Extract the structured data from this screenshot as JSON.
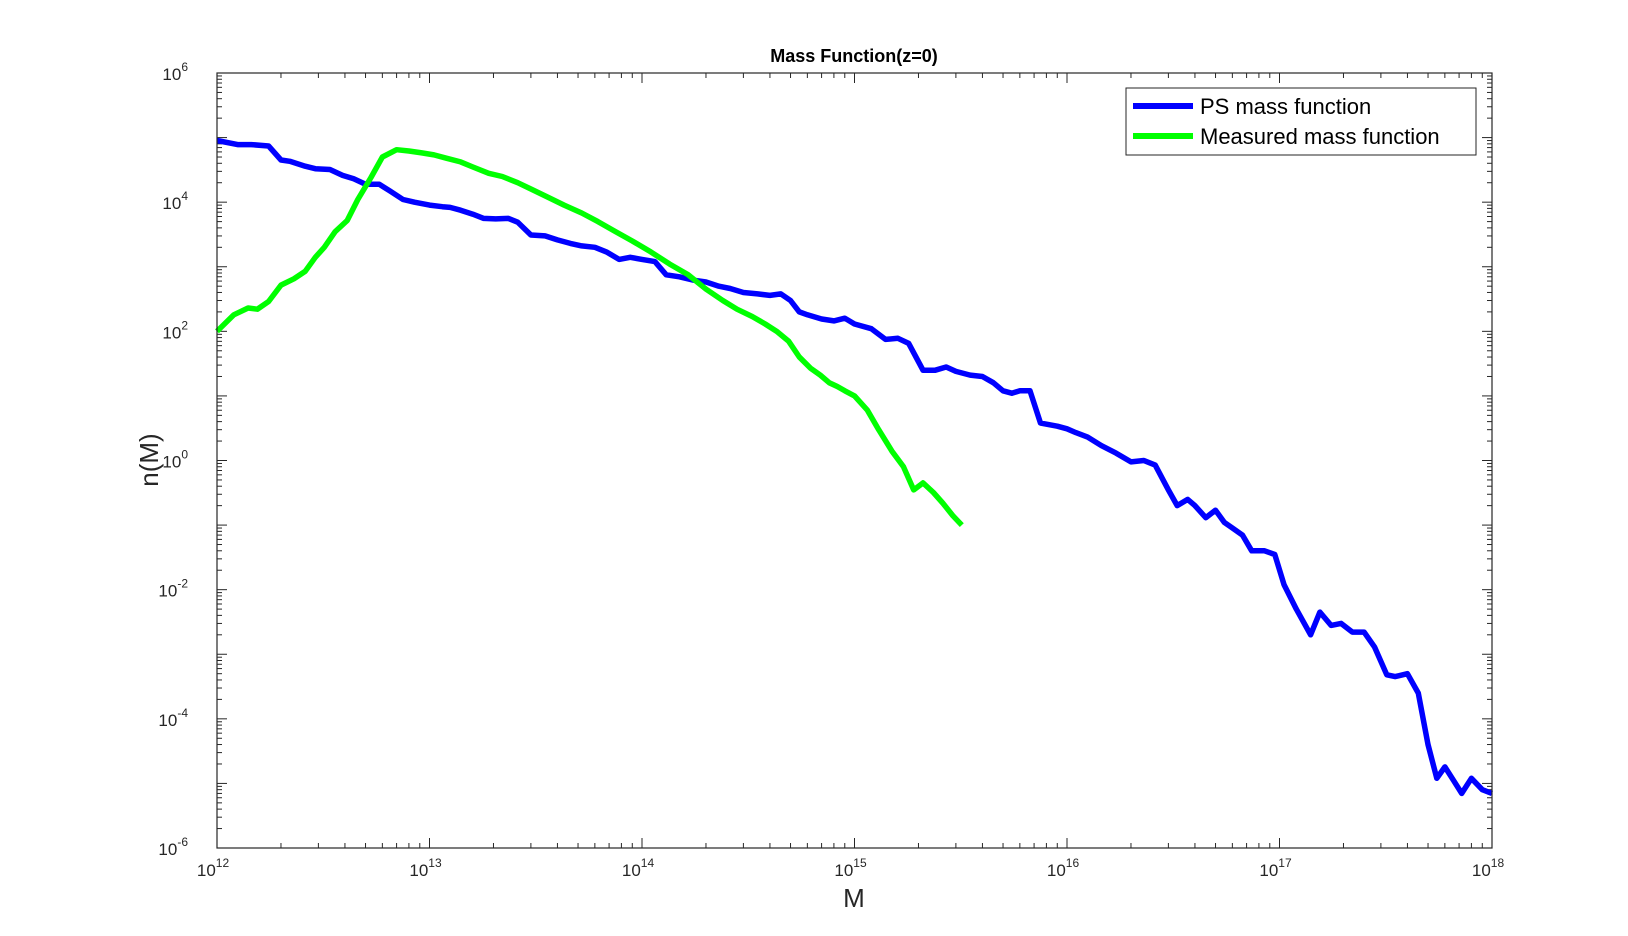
{
  "chart_data": {
    "type": "line",
    "title": "Mass Function(z=0)",
    "xlabel": "M",
    "ylabel": "n(M)",
    "xscale": "log",
    "yscale": "log",
    "xlim": [
      1000000000000.0,
      1e+18
    ],
    "ylim": [
      1e-06,
      1000000.0
    ],
    "grid": false,
    "box": true,
    "legend_position": "top-right",
    "x_ticks": [
      {
        "base": "10",
        "exp": "12",
        "value": 1000000000000.0
      },
      {
        "base": "10",
        "exp": "13",
        "value": 10000000000000.0
      },
      {
        "base": "10",
        "exp": "14",
        "value": 100000000000000.0
      },
      {
        "base": "10",
        "exp": "15",
        "value": 1000000000000000.0
      },
      {
        "base": "10",
        "exp": "16",
        "value": 1e+16
      },
      {
        "base": "10",
        "exp": "17",
        "value": 1e+17
      },
      {
        "base": "10",
        "exp": "18",
        "value": 1e+18
      }
    ],
    "y_ticks": [
      {
        "base": "10",
        "exp": "-6",
        "value": 1e-06
      },
      {
        "base": "10",
        "exp": "-4",
        "value": 0.0001
      },
      {
        "base": "10",
        "exp": "-2",
        "value": 0.01
      },
      {
        "base": "10",
        "exp": "0",
        "value": 1
      },
      {
        "base": "10",
        "exp": "2",
        "value": 100.0
      },
      {
        "base": "10",
        "exp": "4",
        "value": 10000.0
      },
      {
        "base": "10",
        "exp": "6",
        "value": 1000000.0
      }
    ],
    "series": [
      {
        "name": "PS mass function",
        "color": "#0000ff",
        "x": [
          1000000000000.0,
          1250000000000.0,
          1450000000000.0,
          1750000000000.0,
          2000000000000.0,
          2200000000000.0,
          2600000000000.0,
          2900000000000.0,
          3400000000000.0,
          3900000000000.0,
          4400000000000.0,
          5000000000000.0,
          5800000000000.0,
          6500000000000.0,
          7500000000000.0,
          8500000000000.0,
          10000000000000.0,
          11500000000000.0,
          12500000000000.0,
          14000000000000.0,
          16000000000000.0,
          18000000000000.0,
          20500000000000.0,
          23500000000000.0,
          26000000000000.0,
          30000000000000.0,
          35000000000000.0,
          40000000000000.0,
          46000000000000.0,
          52000000000000.0,
          60000000000000.0,
          68000000000000.0,
          78000000000000.0,
          88000000000000.0,
          100000000000000.0,
          115000000000000.0,
          130000000000000.0,
          150000000000000.0,
          175000000000000.0,
          200000000000000.0,
          230000000000000.0,
          260000000000000.0,
          300000000000000.0,
          350000000000000.0,
          400000000000000.0,
          450000000000000.0,
          500000000000000.0,
          550000000000000.0,
          600000000000000.0,
          700000000000000.0,
          800000000000000.0,
          900000000000000.0,
          1000000000000000.0,
          1200000000000000.0,
          1400000000000000.0,
          1600000000000000.0,
          1800000000000000.0,
          2100000000000000.0,
          2400000000000000.0,
          2700000000000000.0,
          3000000000000000.0,
          3500000000000000.0,
          4000000000000000.0,
          4500000000000000.0,
          5000000000000000.0,
          5500000000000000.0,
          6000000000000000.0,
          6700000000000000.0,
          7500000000000000.0,
          9000000000000000.0,
          1e+16,
          1.1e+16,
          1.25e+16,
          1.45e+16,
          1.7e+16,
          2e+16,
          2.3e+16,
          2.6e+16,
          3e+16,
          3.3e+16,
          3.7e+16,
          4e+16,
          4.5e+16,
          5e+16,
          5.5e+16,
          6e+16,
          6.7e+16,
          7.4e+16,
          8.5e+16,
          9.5e+16,
          1.05e+17,
          1.2e+17,
          1.4e+17,
          1.55e+17,
          1.75e+17,
          1.95e+17,
          2.2e+17,
          2.5e+17,
          2.8e+17,
          3.2e+17,
          3.5e+17,
          4e+17,
          4.5e+17,
          5e+17,
          5.5e+17,
          6e+17,
          6.6e+17,
          7.2e+17,
          8e+17,
          9e+17,
          1e+18
        ],
        "y": [
          90000,
          78000,
          78000,
          74000,
          45000,
          43000,
          36000,
          33000,
          32000,
          26000,
          23000,
          19000,
          19000,
          15000,
          11000,
          10000,
          9000,
          8500,
          8300,
          7500,
          6500,
          5600,
          5500,
          5600,
          4900,
          3100,
          3000,
          2600,
          2300,
          2100,
          2000,
          1700,
          1300,
          1400,
          1300,
          1200,
          750,
          700,
          620,
          580,
          500,
          460,
          400,
          380,
          360,
          380,
          300,
          200,
          180,
          155,
          145,
          160,
          130,
          110,
          75,
          78,
          65,
          25,
          25,
          28,
          24,
          21,
          20,
          16,
          12,
          11,
          12,
          12,
          3.8,
          3.4,
          3.1,
          2.7,
          2.3,
          1.7,
          1.3,
          0.95,
          1.0,
          0.85,
          0.35,
          0.2,
          0.25,
          0.2,
          0.13,
          0.17,
          0.11,
          0.09,
          0.07,
          0.04,
          0.04,
          0.035,
          0.012,
          0.005,
          0.002,
          0.0045,
          0.0028,
          0.003,
          0.0022,
          0.0022,
          0.0013,
          0.00048,
          0.00045,
          0.0005,
          0.00025,
          4e-05,
          1.2e-05,
          1.8e-05,
          1.1e-05,
          7e-06,
          1.2e-05,
          8e-06,
          7e-06
        ]
      },
      {
        "name": "Measured mass function",
        "color": "#00ff00",
        "x": [
          1000000000000.0,
          1200000000000.0,
          1400000000000.0,
          1550000000000.0,
          1750000000000.0,
          2000000000000.0,
          2300000000000.0,
          2600000000000.0,
          2900000000000.0,
          3200000000000.0,
          3600000000000.0,
          4100000000000.0,
          4600000000000.0,
          5300000000000.0,
          6000000000000.0,
          7000000000000.0,
          8000000000000.0,
          9200000000000.0,
          10500000000000.0,
          12000000000000.0,
          14000000000000.0,
          16000000000000.0,
          19000000000000.0,
          22000000000000.0,
          26000000000000.0,
          30000000000000.0,
          36000000000000.0,
          43000000000000.0,
          52000000000000.0,
          62000000000000.0,
          75000000000000.0,
          90000000000000.0,
          110000000000000.0,
          135000000000000.0,
          165000000000000.0,
          200000000000000.0,
          240000000000000.0,
          280000000000000.0,
          330000000000000.0,
          380000000000000.0,
          430000000000000.0,
          490000000000000.0,
          550000000000000.0,
          620000000000000.0,
          690000000000000.0,
          760000000000000.0,
          830000000000000.0,
          900000000000000.0,
          1000000000000000.0,
          1150000000000000.0,
          1300000000000000.0,
          1500000000000000.0,
          1700000000000000.0,
          1900000000000000.0,
          2100000000000000.0,
          2350000000000000.0,
          2600000000000000.0,
          2900000000000000.0,
          3200000000000000.0
        ],
        "y": [
          100,
          180,
          230,
          220,
          290,
          520,
          650,
          850,
          1400,
          2000,
          3500,
          5200,
          11000,
          24000,
          50000,
          65000,
          62000,
          58000,
          54000,
          48000,
          42000,
          35000,
          28000,
          25000,
          20000,
          16000,
          12000,
          9000,
          6800,
          5000,
          3500,
          2500,
          1700,
          1100,
          750,
          450,
          300,
          220,
          170,
          130,
          100,
          70,
          40,
          27,
          21,
          16,
          14,
          12,
          10,
          6,
          3,
          1.4,
          0.8,
          0.35,
          0.45,
          0.32,
          0.22,
          0.14,
          0.1
        ]
      }
    ]
  }
}
